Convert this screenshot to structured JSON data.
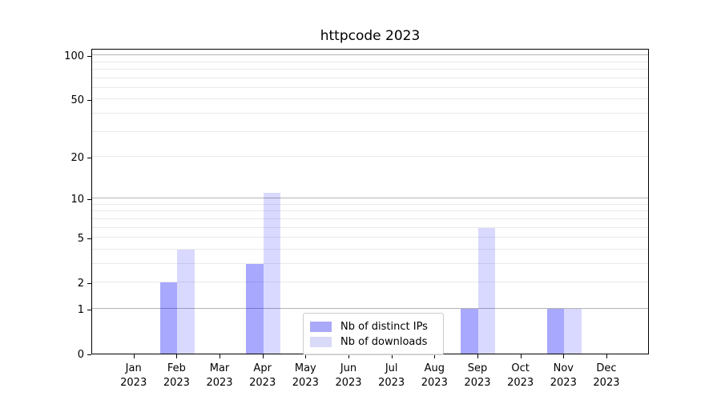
{
  "chart_data": {
    "type": "bar",
    "title": "httpcode 2023",
    "year_label": "2023",
    "categories": [
      "Jan",
      "Feb",
      "Mar",
      "Apr",
      "May",
      "Jun",
      "Jul",
      "Aug",
      "Sep",
      "Oct",
      "Nov",
      "Dec"
    ],
    "series": [
      {
        "name": "Nb of distinct IPs",
        "color": "rgba(0,0,255,0.34)",
        "color_flat": "#a9a9f8",
        "values": [
          0,
          2,
          0,
          3,
          0,
          0,
          0,
          0,
          1,
          0,
          1,
          0
        ]
      },
      {
        "name": "Nb of downloads",
        "color": "rgba(0,0,255,0.15)",
        "color_flat": "#d9d9f8",
        "values": [
          0,
          4,
          0,
          11,
          0,
          0,
          0,
          0,
          6,
          0,
          1,
          0
        ]
      }
    ],
    "xlabel": "",
    "ylabel": "",
    "yscale": "log1p",
    "ylim": [
      0,
      112
    ],
    "y_tick_labels": [
      0,
      1,
      2,
      5,
      10,
      20,
      50,
      100
    ],
    "y_decade_gridlines": [
      1,
      10,
      100
    ],
    "y_minor_gridlines": [
      2,
      3,
      4,
      5,
      6,
      7,
      8,
      9,
      20,
      30,
      40,
      50,
      60,
      70,
      80,
      90
    ],
    "grid": true,
    "legend_position": "lower center inside"
  }
}
